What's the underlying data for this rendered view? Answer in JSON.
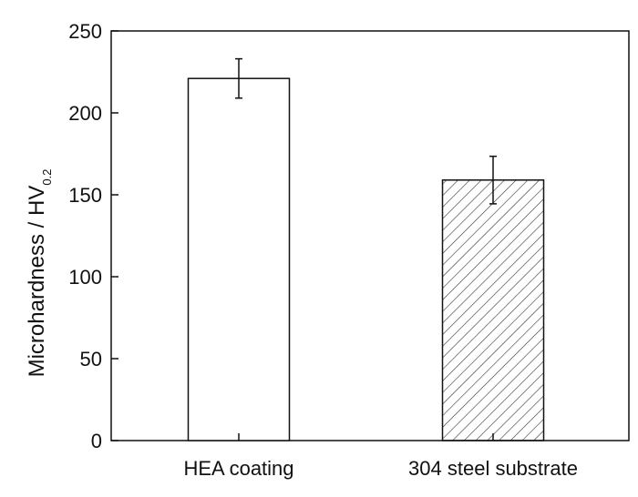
{
  "chart_data": {
    "type": "bar",
    "categories": [
      "HEA coating",
      "304 steel substrate"
    ],
    "values": [
      221,
      159
    ],
    "error": [
      12,
      14.5
    ],
    "bar_styles": [
      "open",
      "hatched"
    ],
    "ylabel": "Microhardness / HV",
    "ylabel_subscript": "0.2",
    "ylim": [
      0,
      250
    ],
    "yticks": [
      "0",
      "50",
      "100",
      "150",
      "200",
      "250"
    ],
    "grid": false,
    "colors": {
      "axis": "#111111",
      "bar_fill": "#ffffff",
      "hatch": "#333333"
    }
  }
}
